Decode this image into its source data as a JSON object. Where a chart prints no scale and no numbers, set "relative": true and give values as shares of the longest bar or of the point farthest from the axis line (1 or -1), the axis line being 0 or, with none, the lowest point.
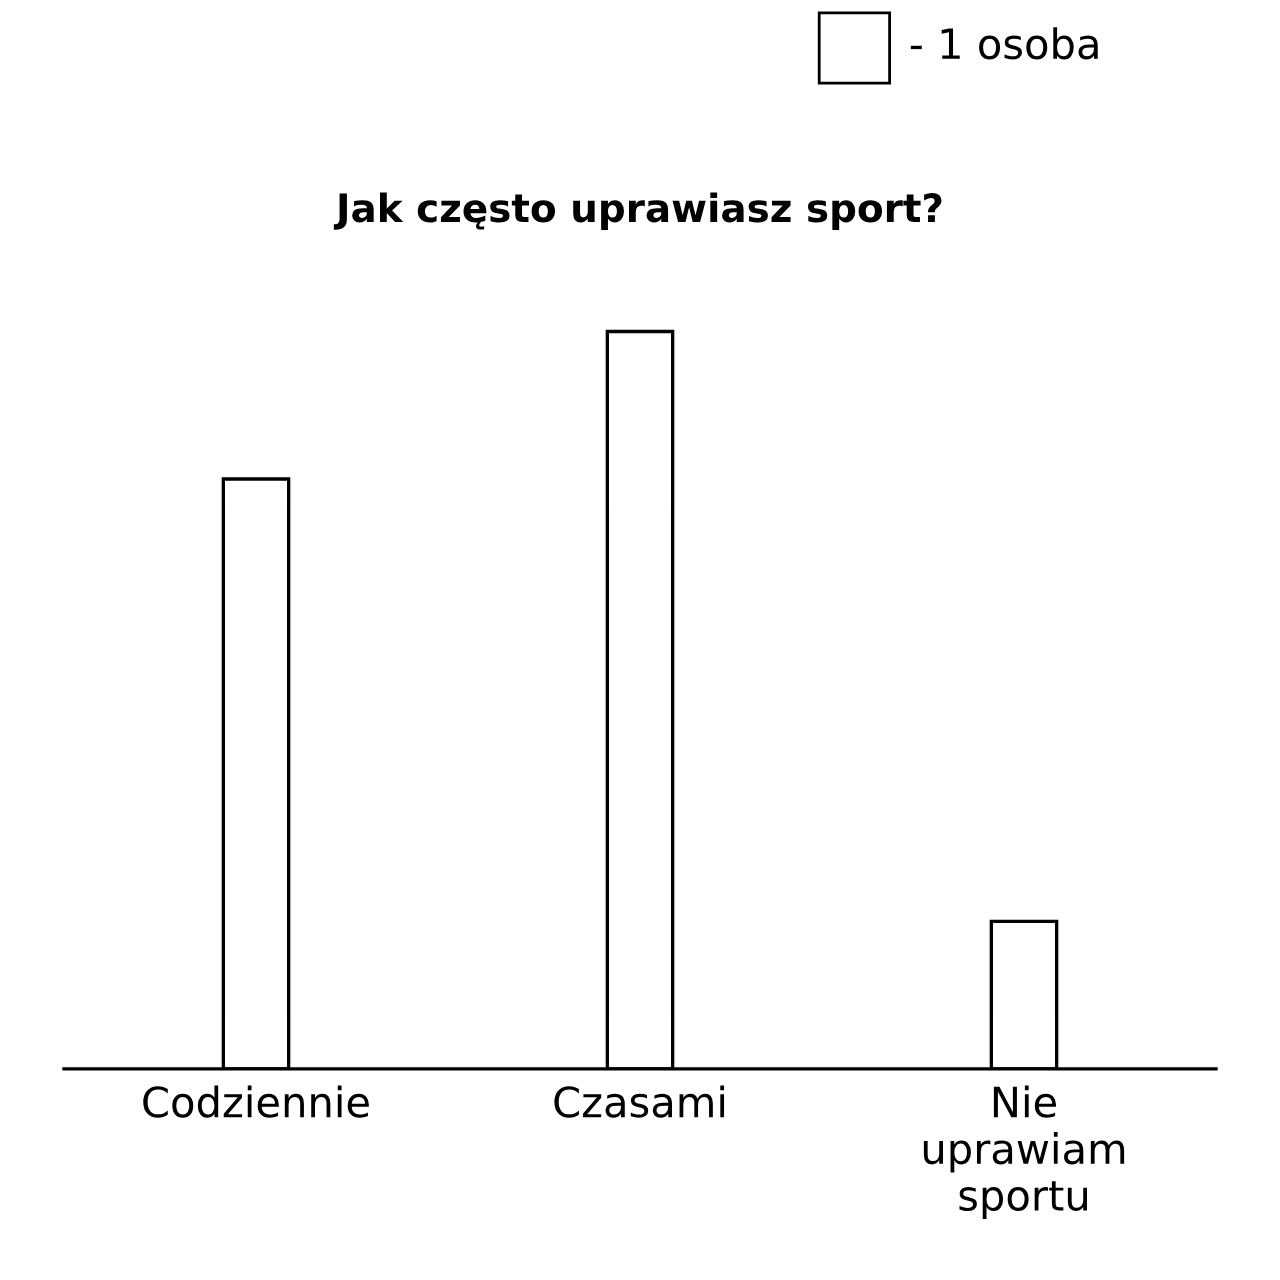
{
  "chart_data": {
    "type": "bar",
    "title": "Jak często uprawiasz sport?",
    "categories": [
      "Codziennie",
      "Czasami",
      "Nie uprawiam sportu"
    ],
    "values": [
      0.8,
      1.0,
      0.2
    ],
    "color": "#ffffff",
    "relative": true,
    "grid": false,
    "legend": false,
    "annotations": [
      "- 1 osoba"
    ]
  }
}
